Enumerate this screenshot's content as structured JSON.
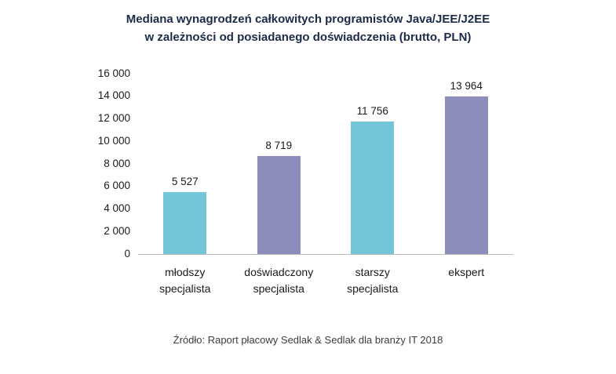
{
  "title_lines": [
    "Mediana wynagrodzeń całkowitych programistów Java/JEE/J2EE",
    "w zależności od posiadanego doświadczenia (brutto, PLN)"
  ],
  "source_text": "Źródło: Raport płacowy Sedlak & Sedlak dla branży IT 2018",
  "colors": {
    "teal": "#73c6d8",
    "purple": "#8d8dbc",
    "title": "#1c2a4a",
    "axis_line": "#b8b8b8"
  },
  "chart_data": {
    "type": "bar",
    "title": "Mediana wynagrodzeń całkowitych programistów Java/JEE/J2EE w zależności od posiadanego doświadczenia (brutto, PLN)",
    "categories": [
      "młodszy specjalista",
      "doświadczony specjalista",
      "starszy specjalista",
      "ekspert"
    ],
    "category_lines": [
      [
        "młodszy",
        "specjalista"
      ],
      [
        "doświadczony",
        "specjalista"
      ],
      [
        "starszy",
        "specjalista"
      ],
      [
        "ekspert"
      ]
    ],
    "values": [
      5527,
      8719,
      11756,
      13964
    ],
    "value_labels": [
      "5 527",
      "8 719",
      "11 756",
      "13 964"
    ],
    "bar_colors": [
      "#73c6d8",
      "#8d8dbc",
      "#73c6d8",
      "#8d8dbc"
    ],
    "xlabel": "",
    "ylabel": "",
    "ylim": [
      0,
      16000
    ],
    "yticks": [
      0,
      2000,
      4000,
      6000,
      8000,
      10000,
      12000,
      14000,
      16000
    ],
    "ytick_labels": [
      "0",
      "2 000",
      "4 000",
      "6 000",
      "8 000",
      "10 000",
      "12 000",
      "14 000",
      "16 000"
    ],
    "grid": false,
    "legend": "none",
    "source": "Źródło: Raport płacowy Sedlak & Sedlak dla branży IT 2018"
  }
}
